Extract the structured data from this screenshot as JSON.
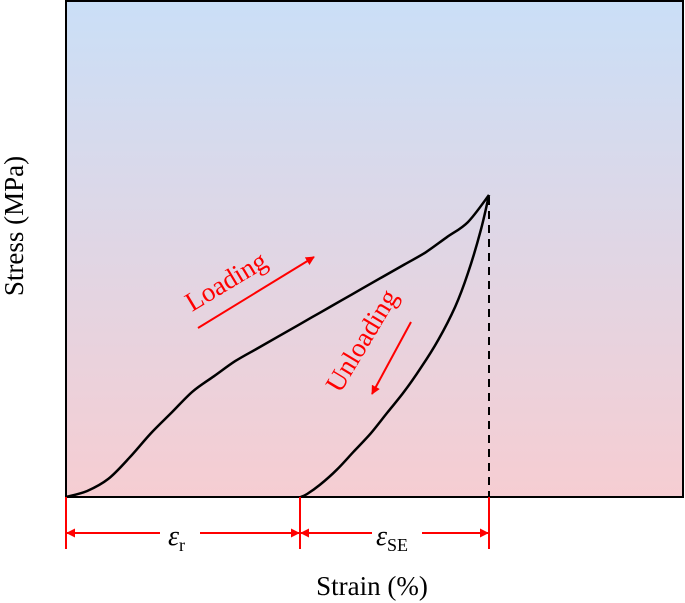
{
  "chart_data": {
    "type": "line",
    "xlabel": "Strain (%)",
    "ylabel": "Stress (MPa)",
    "grid": false,
    "series": [
      {
        "x": [
          0,
          0.05,
          0.1,
          0.15,
          0.2,
          0.25,
          0.3,
          0.35,
          0.4,
          0.45,
          0.5,
          0.55,
          0.6,
          0.65,
          0.7,
          0.75,
          0.8,
          0.85,
          0.9,
          0.95,
          1.0
        ],
        "y": [
          0,
          0.02,
          0.06,
          0.13,
          0.21,
          0.28,
          0.35,
          0.4,
          0.45,
          0.49,
          0.53,
          0.57,
          0.61,
          0.65,
          0.69,
          0.73,
          0.77,
          0.81,
          0.86,
          0.91,
          1.0
        ]
      },
      {
        "x": [
          1.0,
          0.98,
          0.95,
          0.92,
          0.88,
          0.84,
          0.8,
          0.76,
          0.72,
          0.68,
          0.64,
          0.6,
          0.57,
          0.555
        ],
        "y": [
          1.0,
          0.88,
          0.74,
          0.63,
          0.52,
          0.43,
          0.35,
          0.28,
          0.21,
          0.15,
          0.09,
          0.04,
          0.01,
          0
        ]
      }
    ],
    "annotations": {
      "loading": "Loading",
      "unloading": "Unloading",
      "eps_r_symbol": "ε",
      "eps_r_sub": "r",
      "eps_se_symbol": "ε",
      "eps_se_sub": "SE"
    },
    "colors": {
      "bg_top": "#cadff7",
      "bg_bottom": "#f6cdd2",
      "curve": "#000000",
      "annotation": "#ff0000"
    }
  }
}
